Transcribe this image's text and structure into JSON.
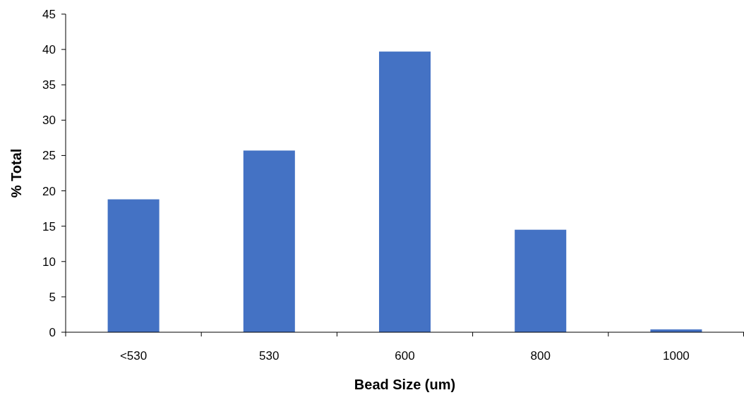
{
  "chart_data": {
    "type": "bar",
    "xlabel": "Bead Size (um)",
    "ylabel": "% Total",
    "categories": [
      "<530",
      "530",
      "600",
      "800",
      "1000"
    ],
    "values": [
      18.8,
      25.7,
      39.7,
      14.5,
      0.4
    ],
    "color": "#4472c4",
    "ylim": [
      0,
      45
    ],
    "yticks": [
      0,
      5,
      10,
      15,
      20,
      25,
      30,
      35,
      40,
      45
    ],
    "grid": false
  }
}
